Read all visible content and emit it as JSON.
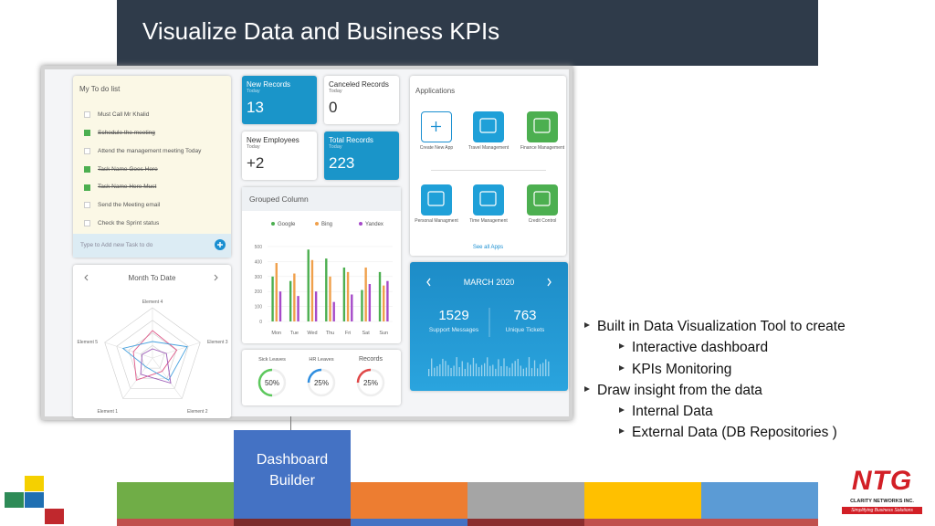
{
  "header": {
    "title": "Visualize Data and Business KPIs"
  },
  "dashboard": {
    "todo": {
      "title": "My To do list",
      "items": [
        {
          "text": "Must Call Mr Khalid",
          "done": false
        },
        {
          "text": "Schedule the meeting",
          "done": true
        },
        {
          "text": "Attend the management meeting Today",
          "done": false
        },
        {
          "text": "Task Name Goes Here",
          "done": true
        },
        {
          "text": "Task Name Here Must",
          "done": true
        },
        {
          "text": "Send the Meeting email",
          "done": false
        },
        {
          "text": "Check the Sprint status",
          "done": false
        }
      ],
      "input_placeholder": "Type to Add new Task to do"
    },
    "month": {
      "title": "Month To Date",
      "axes": [
        "Element 4",
        "Element 3",
        "Element 2",
        "Element 1",
        "Element 5"
      ]
    },
    "cards": [
      {
        "title": "New Records",
        "subtitle": "Today",
        "value": "13",
        "color": "#1a95c9"
      },
      {
        "title": "Canceled Records",
        "subtitle": "Today",
        "value": "0",
        "color": "#ffffff"
      },
      {
        "title": "New Employees",
        "subtitle": "Today",
        "value": "+2",
        "color": "#ffffff"
      },
      {
        "title": "Total Records",
        "subtitle": "Today",
        "value": "223",
        "color": "#1a95c9"
      }
    ],
    "grouped_column": {
      "title": "Grouped Column",
      "categories": [
        "Mon",
        "Tue",
        "Wed",
        "Thu",
        "Fri",
        "Sat",
        "Sun"
      ],
      "series": [
        {
          "name": "Google",
          "color": "#4caf50",
          "values": [
            300,
            270,
            480,
            420,
            360,
            210,
            330
          ]
        },
        {
          "name": "Bing",
          "color": "#f0a04b",
          "values": [
            390,
            320,
            410,
            300,
            330,
            360,
            240
          ]
        },
        {
          "name": "Yandex",
          "color": "#a64ac9",
          "values": [
            200,
            170,
            200,
            130,
            180,
            250,
            270
          ]
        }
      ],
      "ylim": [
        0,
        500
      ],
      "yticks": [
        0,
        100,
        200,
        300,
        400,
        500
      ]
    },
    "leaves": [
      {
        "label": "Sick Leaves",
        "value": 50,
        "value_label": "50%",
        "color": "#5cc85c"
      },
      {
        "label": "HR Leaves",
        "value": 25,
        "value_label": "25%",
        "color": "#2f8ee0"
      },
      {
        "label": "Records",
        "value": 25,
        "value_label": "25%",
        "color": "#e04848"
      }
    ],
    "applications": {
      "title": "Applications",
      "apps": [
        {
          "label": "Create New App",
          "color": "#ffffff"
        },
        {
          "label": "Travel Management",
          "color": "#1fa0d8"
        },
        {
          "label": "Finance Management",
          "color": "#4caf50"
        },
        {
          "label": "Personal Managment",
          "color": "#1fa0d8"
        },
        {
          "label": "Time Management",
          "color": "#1fa0d8"
        },
        {
          "label": "Credit Control",
          "color": "#4caf50"
        }
      ],
      "link": "See all Apps"
    },
    "calendar": {
      "month": "MARCH 2020",
      "stats": [
        {
          "value": "1529",
          "label": "Support Messages"
        },
        {
          "value": "763",
          "label": "Unique Tickets"
        }
      ]
    }
  },
  "bullets": [
    {
      "text": "Built in Data Visualization Tool to create",
      "children": [
        "Interactive dashboard",
        "KPIs Monitoring"
      ]
    },
    {
      "text": "Draw insight from the data",
      "children": [
        "Internal Data",
        "External Data (DB Repositories )"
      ]
    }
  ],
  "callout": "Dashboard Builder",
  "logo": {
    "name": "NTG",
    "company": "CLARITY NETWORKS INC.",
    "tagline": "Simplifying Business Solutions"
  }
}
